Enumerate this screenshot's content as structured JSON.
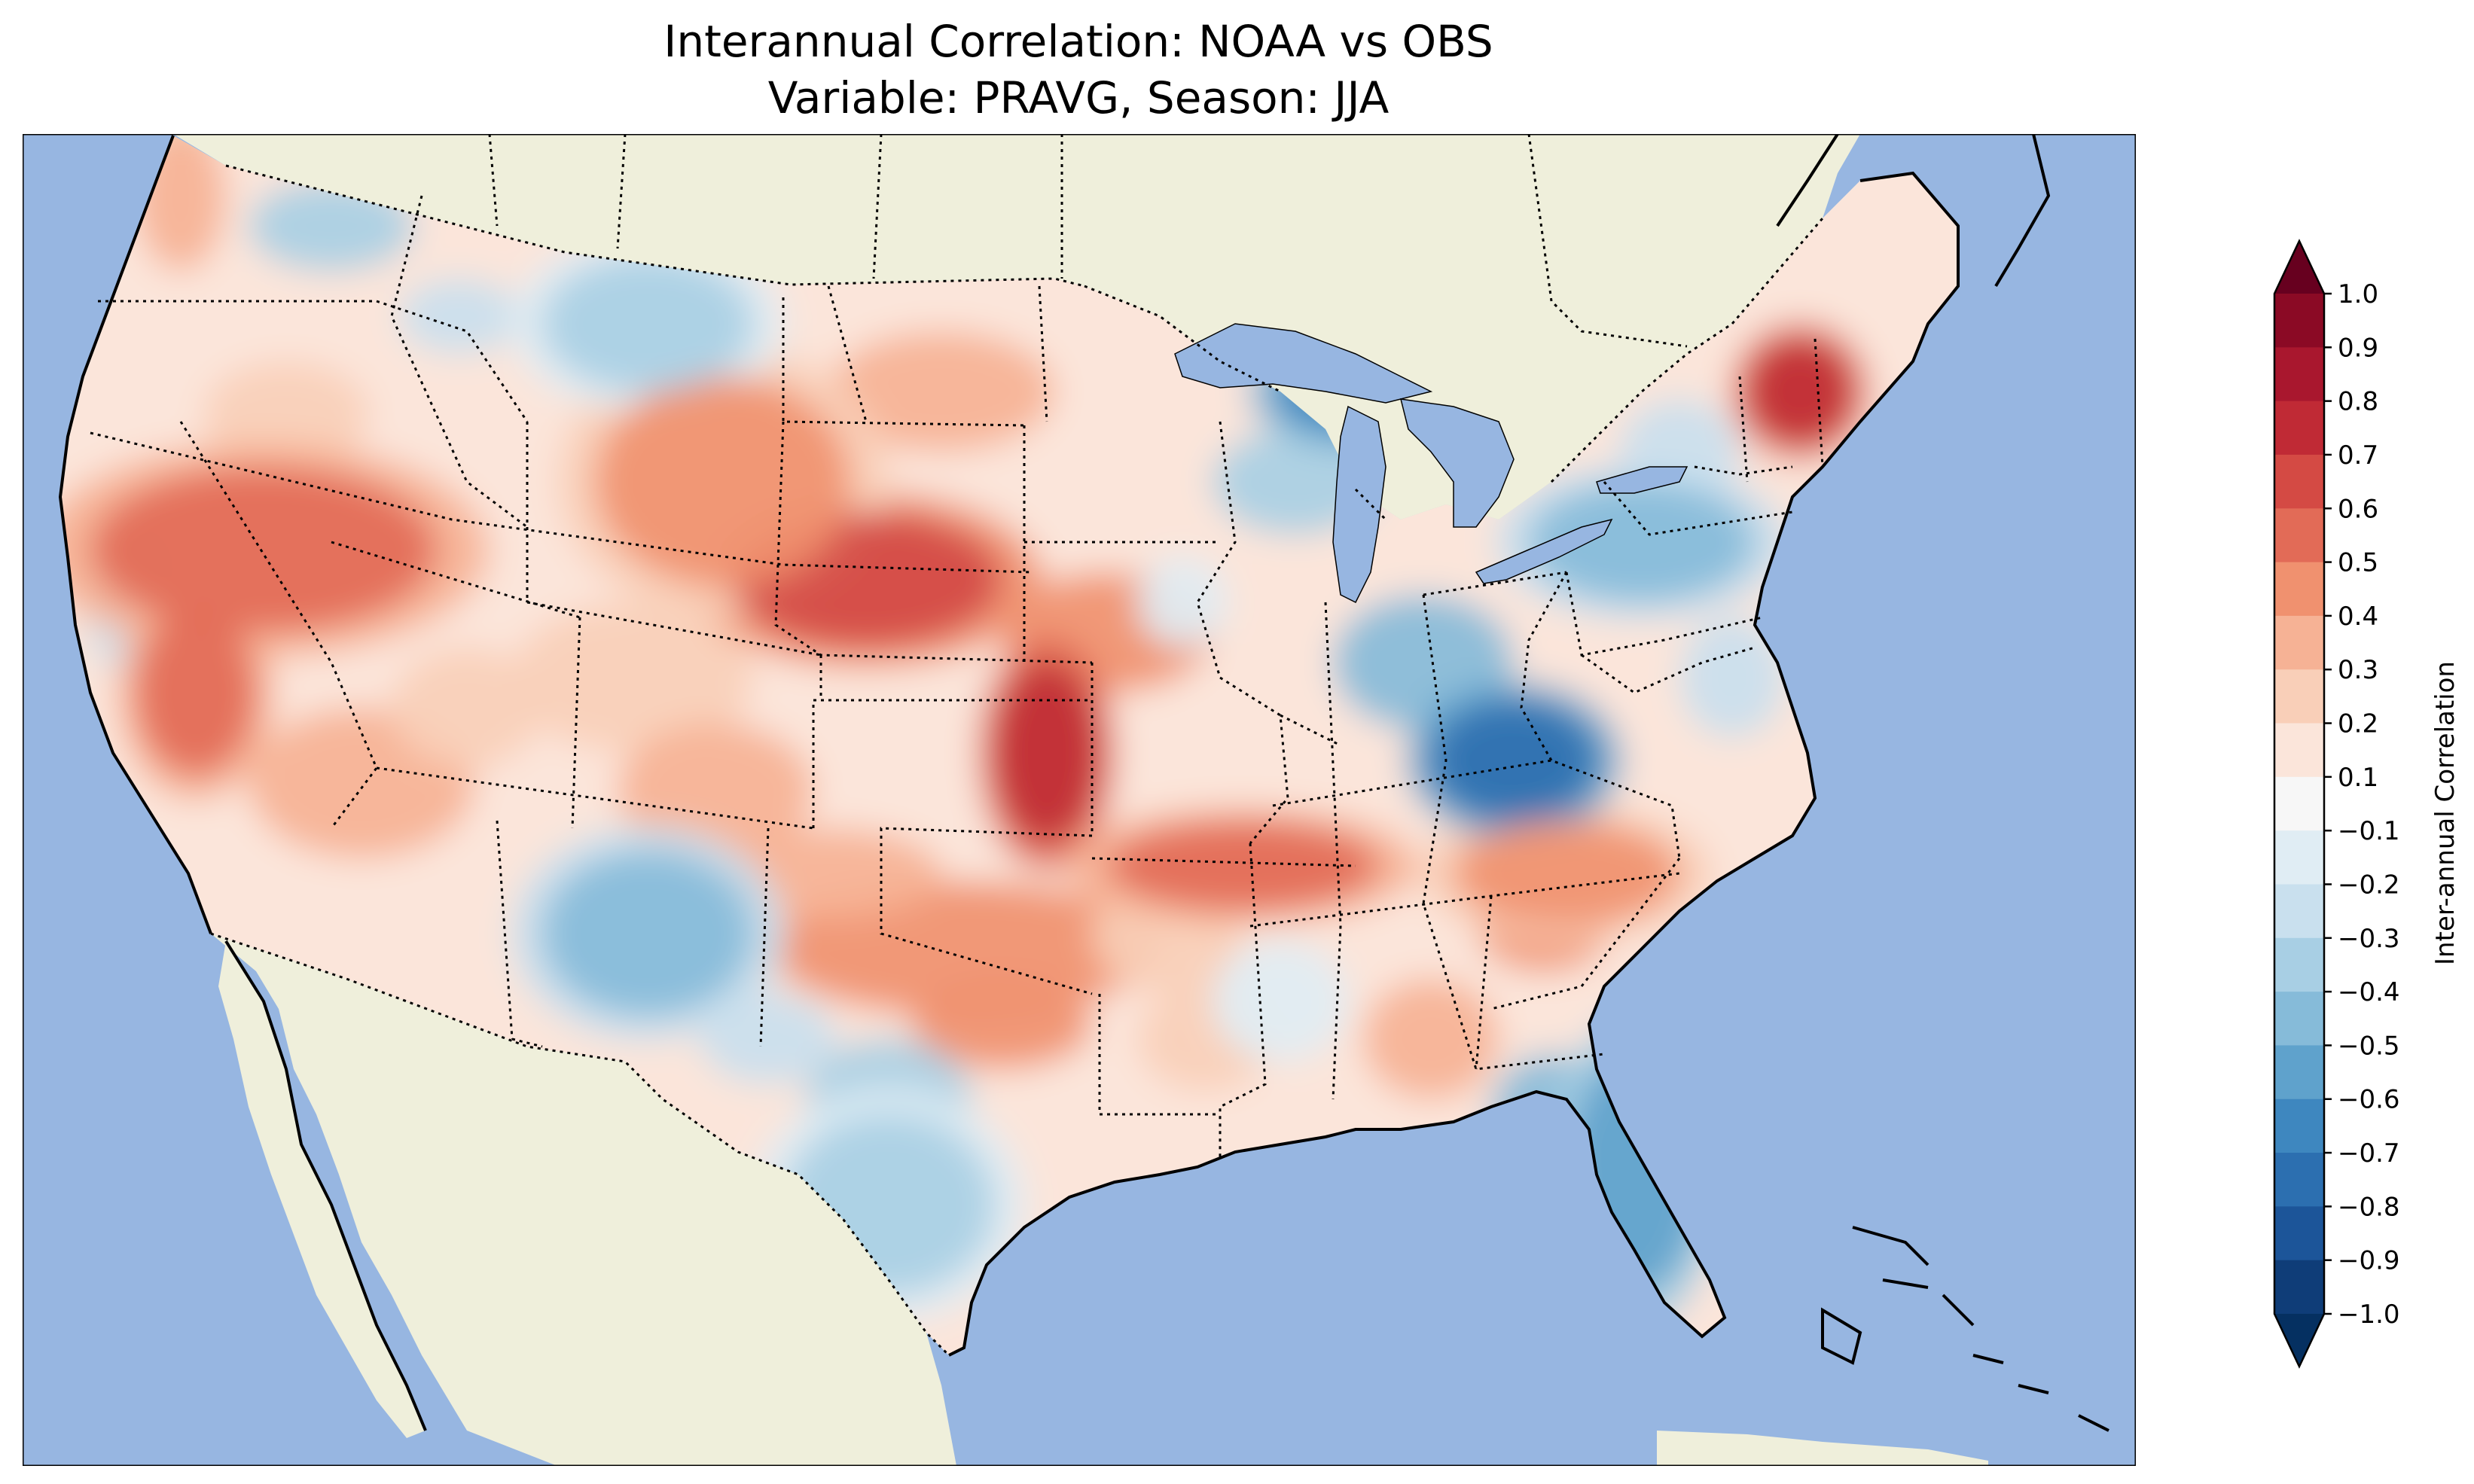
{
  "title": {
    "line1": "Interannual Correlation: NOAA vs OBS",
    "line2": "Variable: PRAVG, Season: JJA"
  },
  "colorbar": {
    "label": "Inter-annual Correlation",
    "ticks": [
      "1.0",
      "0.9",
      "0.8",
      "0.7",
      "0.6",
      "0.5",
      "0.4",
      "0.3",
      "0.2",
      "0.1",
      "−0.1",
      "−0.2",
      "−0.3",
      "−0.4",
      "−0.5",
      "−0.6",
      "−0.7",
      "−0.8",
      "−0.9",
      "−1.0"
    ],
    "colors_top_to_bottom": [
      "#8b0a25",
      "#a9172e",
      "#c02a35",
      "#d44a44",
      "#e26b57",
      "#f0916f",
      "#f6b295",
      "#f9cfb8",
      "#fbe5da",
      "#f7f7f7",
      "#e0edf4",
      "#c9e0ee",
      "#a8cfe4",
      "#86bbd9",
      "#5fa2cc",
      "#3e87bf",
      "#2c6fb0",
      "#1c5599",
      "#0f3d78"
    ],
    "extend_top_color": "#67001f",
    "extend_bottom_color": "#053061"
  },
  "map": {
    "ocean_color": "#97b6e1",
    "land_color": "#efefdb",
    "lake_color": "#97b6e1"
  },
  "chart_data": {
    "type": "heatmap",
    "title": "Interannual Correlation: NOAA vs OBS / Variable: PRAVG, Season: JJA",
    "variable": "PRAVG",
    "season": "JJA",
    "colorbar_label": "Inter-annual Correlation",
    "vmin": -1.0,
    "vmax": 1.0,
    "levels": [
      -1.0,
      -0.9,
      -0.8,
      -0.7,
      -0.6,
      -0.5,
      -0.4,
      -0.3,
      -0.2,
      -0.1,
      0.1,
      0.2,
      0.3,
      0.4,
      0.5,
      0.6,
      0.7,
      0.8,
      0.9,
      1.0
    ],
    "regional_features": [
      {
        "region": "Nebraska / Kansas border",
        "value": 0.7
      },
      {
        "region": "Eastern Kansas",
        "value": 0.8
      },
      {
        "region": "Northern Nevada",
        "value": 0.6
      },
      {
        "region": "Wyoming",
        "value": 0.5
      },
      {
        "region": "Central California",
        "value": 0.6
      },
      {
        "region": "Arkansas / Tennessee",
        "value": 0.6
      },
      {
        "region": "New Hampshire / Vermont",
        "value": 0.8
      },
      {
        "region": "South Carolina",
        "value": 0.5
      },
      {
        "region": "Northern Michigan",
        "value": -0.7
      },
      {
        "region": "Kentucky",
        "value": -0.8
      },
      {
        "region": "Florida",
        "value": -0.6
      },
      {
        "region": "New Mexico",
        "value": -0.5
      },
      {
        "region": "Southern Texas",
        "value": -0.4
      },
      {
        "region": "Idaho / Montana",
        "value": -0.4
      },
      {
        "region": "Pennsylvania / New York",
        "value": -0.5
      }
    ]
  }
}
